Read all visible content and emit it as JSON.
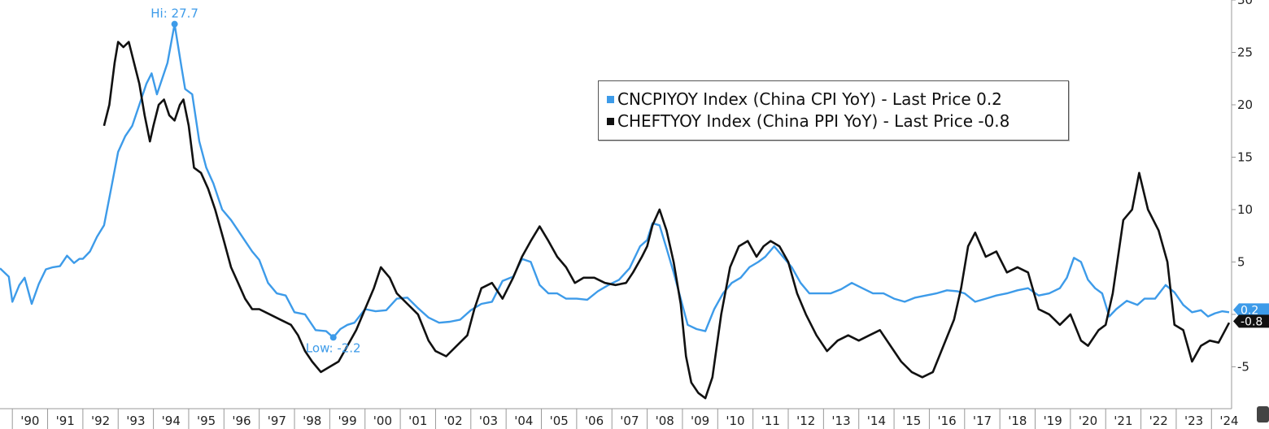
{
  "chart_data": {
    "type": "line",
    "legend_placement": "top-center",
    "grid": false,
    "ylim": [
      -9,
      30
    ],
    "yticks": [
      30,
      25,
      20,
      15,
      10,
      5,
      0,
      -5
    ],
    "ytick_labels": [
      "30",
      "25",
      "20",
      "15",
      "10",
      "5",
      "",
      "-5"
    ],
    "xlim": [
      1989.65,
      2024.57
    ],
    "xticks": [
      1990,
      1991,
      1992,
      1993,
      1994,
      1995,
      1996,
      1997,
      1998,
      1999,
      2000,
      2001,
      2002,
      2003,
      2004,
      2005,
      2006,
      2007,
      2008,
      2009,
      2010,
      2011,
      2012,
      2013,
      2014,
      2015,
      2016,
      2017,
      2018,
      2019,
      2020,
      2021,
      2022,
      2023,
      2024
    ],
    "xtick_labels": [
      "'90",
      "'91",
      "'92",
      "'93",
      "'94",
      "'95",
      "'96",
      "'97",
      "'98",
      "'99",
      "'00",
      "'01",
      "'02",
      "'03",
      "'04",
      "'05",
      "'06",
      "'07",
      "'08",
      "'09",
      "'10",
      "'11",
      "'12",
      "'13",
      "'14",
      "'15",
      "'16",
      "'17",
      "'18",
      "'19",
      "'20",
      "'21",
      "'22",
      "'23",
      "'24"
    ],
    "series": [
      {
        "name": "CNCPIYOY Index (China CPI YoY) - Last Price",
        "last_value": "0.2",
        "legend_text": "CNCPIYOY Index (China CPI YoY) - Last Price 0.2",
        "color": "#3d9be9",
        "x": [
          1989.65,
          1989.9,
          1990.0,
          1990.2,
          1990.35,
          1990.55,
          1990.75,
          1990.95,
          1991.15,
          1991.35,
          1991.55,
          1991.75,
          1991.9,
          1992.0,
          1992.2,
          1992.4,
          1992.6,
          1992.8,
          1993.0,
          1993.2,
          1993.4,
          1993.6,
          1993.8,
          1993.95,
          1994.1,
          1994.25,
          1994.4,
          1994.6,
          1994.8,
          1994.9,
          1995.1,
          1995.3,
          1995.5,
          1995.7,
          1995.95,
          1996.2,
          1996.4,
          1996.6,
          1996.8,
          1997.0,
          1997.25,
          1997.5,
          1997.75,
          1998.0,
          1998.3,
          1998.6,
          1998.9,
          1999.1,
          1999.3,
          1999.5,
          1999.7,
          2000.0,
          2000.3,
          2000.6,
          2000.9,
          2001.2,
          2001.5,
          2001.8,
          2002.1,
          2002.4,
          2002.7,
          2003.0,
          2003.3,
          2003.6,
          2003.9,
          2004.2,
          2004.45,
          2004.7,
          2004.95,
          2005.2,
          2005.45,
          2005.7,
          2006.0,
          2006.3,
          2006.6,
          2006.9,
          2007.2,
          2007.5,
          2007.8,
          2008.0,
          2008.15,
          2008.35,
          2008.55,
          2008.75,
          2008.95,
          2009.15,
          2009.4,
          2009.65,
          2009.9,
          2010.15,
          2010.4,
          2010.65,
          2010.9,
          2011.15,
          2011.35,
          2011.6,
          2011.85,
          2012.1,
          2012.35,
          2012.6,
          2012.9,
          2013.2,
          2013.5,
          2013.8,
          2014.1,
          2014.4,
          2014.7,
          2015.0,
          2015.3,
          2015.6,
          2015.9,
          2016.2,
          2016.5,
          2016.8,
          2017.0,
          2017.3,
          2017.6,
          2017.9,
          2018.2,
          2018.5,
          2018.8,
          2019.1,
          2019.4,
          2019.7,
          2019.9,
          2020.1,
          2020.3,
          2020.5,
          2020.7,
          2020.9,
          2021.1,
          2021.3,
          2021.6,
          2021.9,
          2022.1,
          2022.4,
          2022.7,
          2022.95,
          2023.2,
          2023.45,
          2023.7,
          2023.9,
          2024.1,
          2024.3,
          2024.5
        ],
        "values": [
          4.4,
          3.6,
          1.2,
          2.8,
          3.5,
          1.0,
          2.9,
          4.3,
          4.5,
          4.6,
          5.6,
          4.9,
          5.3,
          5.3,
          6.0,
          7.4,
          8.5,
          12.0,
          15.5,
          17.0,
          18.0,
          20.0,
          22.0,
          23.0,
          21.0,
          22.5,
          24.0,
          27.7,
          23.5,
          21.5,
          21.0,
          16.5,
          14.0,
          12.5,
          10.0,
          9.0,
          8.0,
          7.0,
          6.0,
          5.2,
          3.0,
          2.0,
          1.8,
          0.2,
          0.0,
          -1.5,
          -1.6,
          -2.2,
          -1.4,
          -1.0,
          -0.8,
          0.5,
          0.3,
          0.4,
          1.5,
          1.6,
          0.6,
          -0.3,
          -0.8,
          -0.7,
          -0.5,
          0.4,
          1.0,
          1.2,
          3.2,
          3.6,
          5.3,
          5.0,
          2.8,
          2.0,
          2.0,
          1.5,
          1.5,
          1.4,
          2.2,
          2.8,
          3.3,
          4.4,
          6.5,
          7.1,
          8.7,
          8.5,
          6.3,
          4.0,
          1.5,
          -1.0,
          -1.4,
          -1.6,
          0.5,
          2.0,
          3.0,
          3.5,
          4.5,
          5.0,
          5.5,
          6.5,
          5.5,
          4.5,
          3.0,
          2.0,
          2.0,
          2.0,
          2.4,
          3.0,
          2.5,
          2.0,
          2.0,
          1.5,
          1.2,
          1.6,
          1.8,
          2.0,
          2.3,
          2.2,
          2.0,
          1.2,
          1.5,
          1.8,
          2.0,
          2.3,
          2.5,
          1.8,
          2.0,
          2.5,
          3.5,
          5.4,
          5.0,
          3.3,
          2.5,
          2.0,
          -0.2,
          0.5,
          1.3,
          0.9,
          1.5,
          1.5,
          2.8,
          2.1,
          0.9,
          0.2,
          0.4,
          -0.2,
          0.1,
          0.3,
          0.2
        ],
        "annotations": [
          {
            "text": "Hi: 27.7",
            "x": 1994.6,
            "value": 27.7
          },
          {
            "text": "Low: -2.2",
            "x": 1999.1,
            "value": -2.2
          }
        ]
      },
      {
        "name": "CHEFTYOY Index (China PPI YoY) - Last Price",
        "last_value": "-0.8",
        "legend_text": "CHEFTYOY Index (China PPI YoY) - Last Price -0.8",
        "color": "#111111",
        "x": [
          1992.6,
          1992.75,
          1992.9,
          1993.0,
          1993.15,
          1993.3,
          1993.45,
          1993.6,
          1993.75,
          1993.9,
          1994.0,
          1994.15,
          1994.3,
          1994.45,
          1994.6,
          1994.75,
          1994.85,
          1995.0,
          1995.15,
          1995.35,
          1995.55,
          1995.75,
          1996.0,
          1996.2,
          1996.4,
          1996.6,
          1996.8,
          1997.0,
          1997.3,
          1997.6,
          1997.9,
          1998.1,
          1998.3,
          1998.5,
          1998.75,
          1999.0,
          1999.25,
          1999.5,
          1999.75,
          2000.0,
          2000.25,
          2000.45,
          2000.7,
          2000.9,
          2001.2,
          2001.5,
          2001.8,
          2002.0,
          2002.3,
          2002.6,
          2002.9,
          2003.1,
          2003.3,
          2003.6,
          2003.9,
          2004.2,
          2004.45,
          2004.7,
          2004.95,
          2005.2,
          2005.45,
          2005.7,
          2005.95,
          2006.2,
          2006.5,
          2006.8,
          2007.1,
          2007.4,
          2007.6,
          2007.85,
          2008.0,
          2008.15,
          2008.35,
          2008.55,
          2008.75,
          2008.95,
          2009.1,
          2009.25,
          2009.45,
          2009.65,
          2009.85,
          2010.1,
          2010.35,
          2010.6,
          2010.85,
          2011.1,
          2011.3,
          2011.5,
          2011.75,
          2012.0,
          2012.25,
          2012.5,
          2012.8,
          2013.1,
          2013.4,
          2013.7,
          2014.0,
          2014.3,
          2014.6,
          2014.9,
          2015.2,
          2015.5,
          2015.8,
          2016.1,
          2016.4,
          2016.7,
          2016.9,
          2017.1,
          2017.3,
          2017.6,
          2017.9,
          2018.2,
          2018.5,
          2018.8,
          2019.1,
          2019.4,
          2019.7,
          2020.0,
          2020.3,
          2020.5,
          2020.8,
          2021.0,
          2021.2,
          2021.5,
          2021.75,
          2021.95,
          2022.2,
          2022.5,
          2022.75,
          2022.95,
          2023.2,
          2023.45,
          2023.7,
          2023.95,
          2024.2,
          2024.5
        ],
        "values": [
          18.0,
          20.0,
          24.0,
          26.0,
          25.5,
          26.0,
          24.0,
          22.0,
          19.0,
          16.5,
          18.0,
          20.0,
          20.5,
          19.0,
          18.5,
          20.0,
          20.5,
          18.0,
          14.0,
          13.5,
          12.0,
          10.0,
          7.0,
          4.5,
          3.0,
          1.5,
          0.5,
          0.5,
          0.0,
          -0.5,
          -1.0,
          -2.0,
          -3.5,
          -4.5,
          -5.5,
          -5.0,
          -4.5,
          -3.0,
          -1.5,
          0.5,
          2.5,
          4.5,
          3.5,
          2.0,
          1.0,
          0.0,
          -2.5,
          -3.5,
          -4.0,
          -3.0,
          -2.0,
          0.5,
          2.5,
          3.0,
          1.5,
          3.5,
          5.5,
          7.0,
          8.4,
          7.0,
          5.5,
          4.5,
          3.0,
          3.5,
          3.5,
          3.0,
          2.8,
          3.0,
          4.0,
          5.5,
          6.5,
          8.5,
          10.0,
          8.0,
          5.0,
          1.0,
          -4.0,
          -6.5,
          -7.5,
          -8.0,
          -6.0,
          0.0,
          4.5,
          6.5,
          7.0,
          5.5,
          6.5,
          7.0,
          6.5,
          5.0,
          2.0,
          0.0,
          -2.0,
          -3.5,
          -2.5,
          -2.0,
          -2.5,
          -2.0,
          -1.5,
          -3.0,
          -4.5,
          -5.5,
          -6.0,
          -5.5,
          -3.0,
          -0.5,
          2.5,
          6.5,
          7.8,
          5.5,
          6.0,
          4.0,
          4.5,
          4.0,
          0.5,
          0.0,
          -1.0,
          0.0,
          -2.5,
          -3.0,
          -1.5,
          -1.0,
          2.0,
          9.0,
          10.0,
          13.5,
          10.0,
          8.0,
          5.0,
          -1.0,
          -1.5,
          -4.5,
          -3.0,
          -2.5,
          -2.7,
          -0.8
        ]
      }
    ]
  },
  "hi_label": "Hi: 27.7",
  "low_label": "Low: -2.2",
  "legend": [
    {
      "text": "CNCPIYOY Index (China CPI YoY) - Last Price 0.2",
      "color": "#3d9be9"
    },
    {
      "text": "CHEFTYOY Index (China PPI YoY) - Last Price -0.8",
      "color": "#111111"
    }
  ],
  "last_price_tags": [
    {
      "text": "0.2",
      "bg": "#3d9be9",
      "fg": "#ffffff"
    },
    {
      "text": "-0.8",
      "bg": "#111111",
      "fg": "#ffffff"
    }
  ]
}
